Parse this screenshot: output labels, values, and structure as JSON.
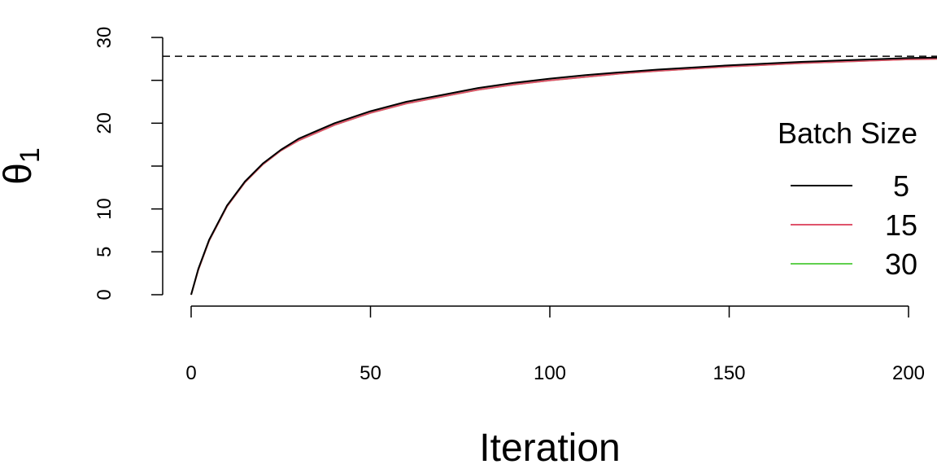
{
  "chart_data": {
    "type": "line",
    "title": "",
    "xlabel": "Iteration",
    "ylabel_main": "θ",
    "ylabel_sub": "1",
    "xlim": [
      0,
      208
    ],
    "ylim": [
      0,
      30
    ],
    "x_ticks": [
      0,
      50,
      100,
      150,
      200
    ],
    "x_tick_labels": [
      "0",
      "50",
      "100",
      "150",
      "200"
    ],
    "y_ticks": [
      0,
      5,
      10,
      15,
      20,
      25,
      30
    ],
    "y_tick_labels": [
      "0",
      "5",
      "10",
      "",
      "20",
      "",
      "30"
    ],
    "reference_line": {
      "y": 27.8,
      "style": "dashed",
      "color": "#000000"
    },
    "legend": {
      "title": "Batch Size",
      "position": "right"
    },
    "x": [
      0,
      2,
      5,
      10,
      15,
      20,
      25,
      30,
      40,
      50,
      60,
      70,
      80,
      90,
      100,
      110,
      120,
      130,
      140,
      150,
      160,
      170,
      180,
      190,
      200,
      208
    ],
    "series": [
      {
        "name": "5",
        "color": "#000000",
        "values": [
          0,
          3.0,
          6.4,
          10.4,
          13.2,
          15.3,
          16.9,
          18.2,
          20.0,
          21.4,
          22.5,
          23.3,
          24.1,
          24.7,
          25.2,
          25.6,
          25.95,
          26.25,
          26.5,
          26.75,
          26.95,
          27.15,
          27.3,
          27.45,
          27.6,
          27.65
        ]
      },
      {
        "name": "15",
        "color": "#DF536B",
        "values": [
          0,
          2.9,
          6.3,
          10.3,
          13.1,
          15.2,
          16.8,
          18.0,
          19.8,
          21.2,
          22.3,
          23.1,
          23.9,
          24.5,
          25.0,
          25.4,
          25.8,
          26.1,
          26.35,
          26.6,
          26.8,
          27.0,
          27.15,
          27.3,
          27.45,
          27.5
        ]
      },
      {
        "name": "30",
        "color": "#61D04F",
        "values": [
          0,
          2.9,
          6.3,
          10.3,
          13.1,
          15.2,
          16.8,
          18.0,
          19.8,
          21.2,
          22.3,
          23.1,
          23.9,
          24.5,
          25.0,
          25.4,
          25.8,
          26.1,
          26.35,
          26.6,
          26.8,
          27.0,
          27.15,
          27.3,
          27.45,
          27.5
        ]
      }
    ]
  }
}
